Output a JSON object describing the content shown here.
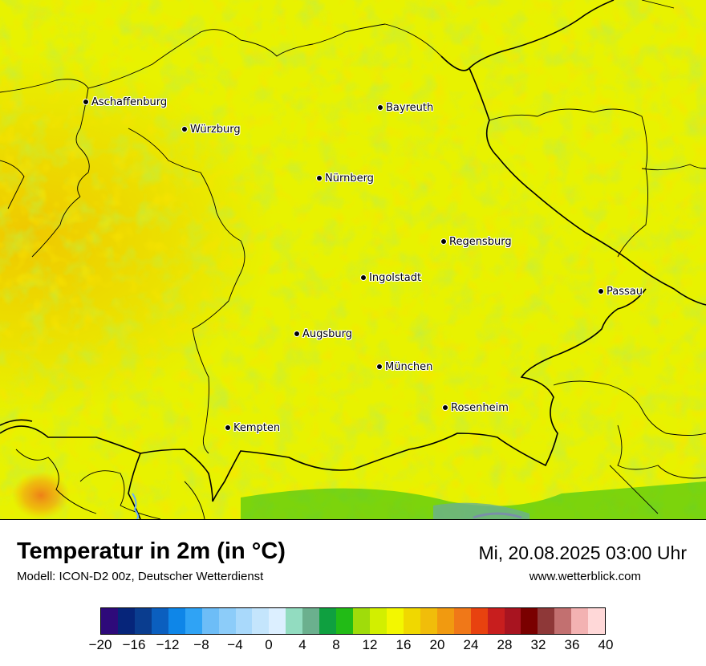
{
  "title": "Temperatur in 2m (in °C)",
  "model": "Modell: ICON-D2 00z, Deutscher Wetterdienst",
  "datetime": "Mi, 20.08.2025 03:00 Uhr",
  "website": "www.wetterblick.com",
  "map": {
    "cities": [
      {
        "name": "Aschaffenburg"
      },
      {
        "name": "Würzburg"
      },
      {
        "name": "Bayreuth"
      },
      {
        "name": "Nürnberg"
      },
      {
        "name": "Regensburg"
      },
      {
        "name": "Ingolstadt"
      },
      {
        "name": "Passau"
      },
      {
        "name": "Augsburg"
      },
      {
        "name": "München"
      },
      {
        "name": "Rosenheim"
      },
      {
        "name": "Kempten"
      }
    ]
  },
  "colorbar": {
    "min": -20,
    "max": 40,
    "step": 2,
    "tick_labels": [
      "−20",
      "−16",
      "−12",
      "−8",
      "−4",
      "0",
      "4",
      "8",
      "12",
      "16",
      "20",
      "24",
      "28",
      "32",
      "36",
      "40"
    ],
    "colors": [
      "#2e0a7a",
      "#06257a",
      "#0a3d8f",
      "#0b5fbf",
      "#0e86e8",
      "#2fa3f5",
      "#6dbdf7",
      "#8cccf9",
      "#a9d9fb",
      "#c4e5fc",
      "#dcefff",
      "#92dcc0",
      "#6bb08e",
      "#0fa040",
      "#22bb16",
      "#a0dc0a",
      "#d2ef00",
      "#f3f700",
      "#f0d800",
      "#f1bd0a",
      "#f19a10",
      "#f07818",
      "#e8420f",
      "#c81e1e",
      "#a81420",
      "#7a0000",
      "#8e3838",
      "#c27070",
      "#f3b2b2",
      "#ffd8d8"
    ]
  }
}
